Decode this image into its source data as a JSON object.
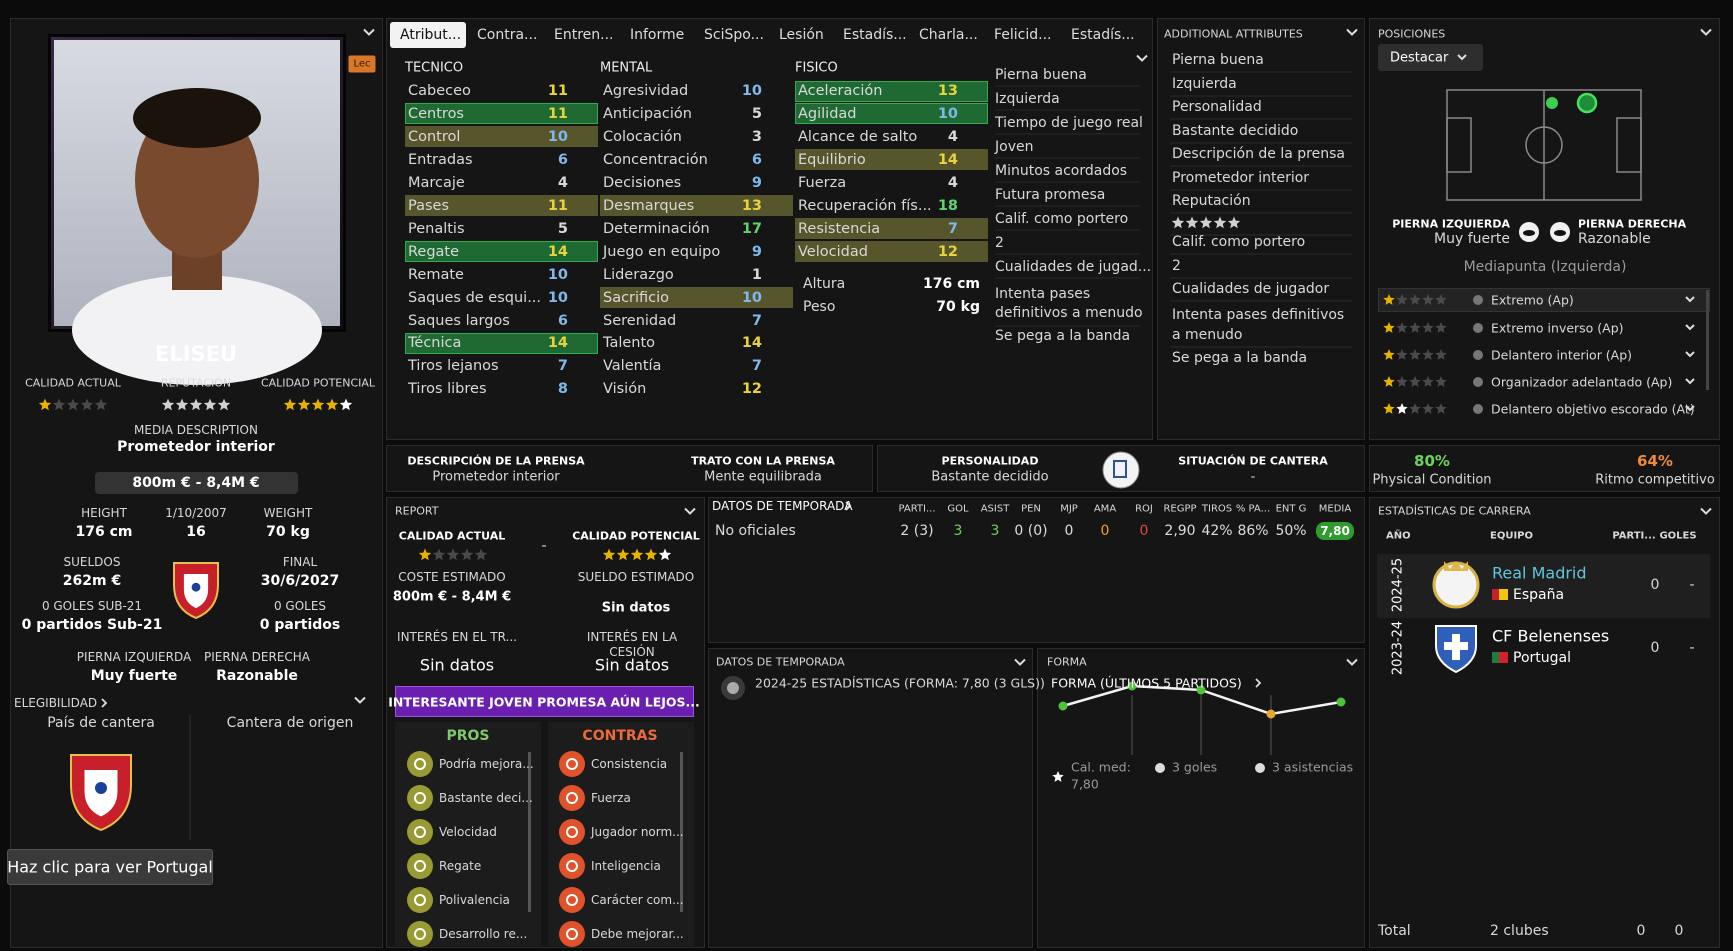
{
  "profile": {
    "badge": "Lec",
    "name": "ELISEU",
    "ratings": [
      {
        "label": "CALIDAD ACTUAL",
        "stars": 1
      },
      {
        "label": "REPUTACIÓN",
        "stars": 5
      },
      {
        "label": "CALIDAD POTENCIAL",
        "stars": 4.5
      }
    ],
    "media_description": {
      "label": "MEDIA DESCRIPTION",
      "value": "Prometedor interior"
    },
    "value": "800m € - 8,4M €",
    "facts": [
      {
        "label": "HEIGHT",
        "value": "176 cm"
      },
      {
        "label": "1/10/2007",
        "value": "16"
      },
      {
        "label": "WEIGHT",
        "value": "70 kg"
      },
      {
        "label": "SUELDOS",
        "value": "262m €"
      },
      {
        "label": "FINAL",
        "value": "30/6/2027"
      },
      {
        "label": "0 GOLES SUB-21",
        "value": "0 partidos Sub-21"
      },
      {
        "label": "0 GOLES",
        "value": "0 partidos"
      },
      {
        "label": "PIERNA IZQUIERDA",
        "value": "Muy fuerte"
      },
      {
        "label": "PIERNA DERECHA",
        "value": "Razonable"
      }
    ],
    "eligibility": {
      "title": "ELEGIBILIDAD",
      "columns": [
        "País de cantera",
        "Cantera de origen"
      ]
    },
    "tooltip": "Haz clic para ver Portugal"
  },
  "tabs": [
    "Atribut...",
    "Contra...",
    "Entren...",
    "Informe",
    "SciSpo...",
    "Lesión",
    "Estadís...",
    "Charla...",
    "Felicid...",
    "Estadís..."
  ],
  "attributes": {
    "columns": [
      {
        "title": "TECNICO",
        "rows": [
          {
            "name": "Cabeceo",
            "value": 11
          },
          {
            "name": "Centros",
            "value": 11,
            "highlight": "green"
          },
          {
            "name": "Control",
            "value": 10,
            "highlight": "olive"
          },
          {
            "name": "Entradas",
            "value": 6
          },
          {
            "name": "Marcaje",
            "value": 4
          },
          {
            "name": "Pases",
            "value": 11,
            "highlight": "olive"
          },
          {
            "name": "Penaltis",
            "value": 5
          },
          {
            "name": "Regate",
            "value": 14,
            "highlight": "green"
          },
          {
            "name": "Remate",
            "value": 10
          },
          {
            "name": "Saques de esqui...",
            "value": 10
          },
          {
            "name": "Saques largos",
            "value": 6
          },
          {
            "name": "Técnica",
            "value": 14,
            "highlight": "green"
          },
          {
            "name": "Tiros lejanos",
            "value": 7
          },
          {
            "name": "Tiros libres",
            "value": 8
          }
        ]
      },
      {
        "title": "MENTAL",
        "rows": [
          {
            "name": "Agresividad",
            "value": 10
          },
          {
            "name": "Anticipación",
            "value": 5
          },
          {
            "name": "Colocación",
            "value": 3
          },
          {
            "name": "Concentración",
            "value": 6
          },
          {
            "name": "Decisiones",
            "value": 9
          },
          {
            "name": "Desmarques",
            "value": 13,
            "highlight": "olive"
          },
          {
            "name": "Determinación",
            "value": 17
          },
          {
            "name": "Juego en equipo",
            "value": 9
          },
          {
            "name": "Liderazgo",
            "value": 1
          },
          {
            "name": "Sacrificio",
            "value": 10,
            "highlight": "olive"
          },
          {
            "name": "Serenidad",
            "value": 7
          },
          {
            "name": "Talento",
            "value": 14
          },
          {
            "name": "Valentía",
            "value": 7
          },
          {
            "name": "Visión",
            "value": 12
          }
        ]
      },
      {
        "title": "FISICO",
        "rows": [
          {
            "name": "Aceleración",
            "value": 13,
            "highlight": "green"
          },
          {
            "name": "Agilidad",
            "value": 10,
            "highlight": "green"
          },
          {
            "name": "Alcance de salto",
            "value": 4
          },
          {
            "name": "Equilibrio",
            "value": 14,
            "highlight": "olive"
          },
          {
            "name": "Fuerza",
            "value": 4
          },
          {
            "name": "Recuperación fís...",
            "value": 18
          },
          {
            "name": "Resistencia",
            "value": 7,
            "highlight": "olive"
          },
          {
            "name": "Velocidad",
            "value": 12,
            "highlight": "olive"
          }
        ]
      }
    ],
    "body": [
      {
        "label": "Altura",
        "value": "176 cm"
      },
      {
        "label": "Peso",
        "value": "70 kg"
      }
    ],
    "notes": [
      "Pierna buena",
      "Izquierda",
      "Tiempo de juego real",
      "Joven",
      "Minutos acordados",
      "Futura promesa",
      "Calif. como portero",
      "2",
      "Cualidades de jugad...",
      "Intenta pases definitivos a menudo",
      "Se pega a la banda"
    ]
  },
  "additional": {
    "title": "ADDITIONAL ATTRIBUTES",
    "items": [
      "Pierna buena",
      "Izquierda",
      "Personalidad",
      "Bastante decidido",
      "Descripción de la prensa",
      "Prometedor interior",
      "Reputación",
      {
        "stars": 5
      },
      "Calif. como portero",
      "2",
      "Cualidades de jugador",
      "Intenta pases definitivos a menudo",
      "Se pega a la banda"
    ]
  },
  "positions": {
    "title": "POSICIONES",
    "button": "Destacar",
    "feet": [
      {
        "label": "PIERNA IZQUIERDA",
        "value": "Muy fuerte"
      },
      {
        "label": "PIERNA DERECHA",
        "value": "Razonable"
      }
    ],
    "position": "Mediapunta (Izquierda)",
    "roles": [
      {
        "name": "Extremo (Ap)",
        "stars": 1
      },
      {
        "name": "Extremo inverso (Ap)",
        "stars": 1
      },
      {
        "name": "Delantero interior (Ap)",
        "stars": 1
      },
      {
        "name": "Organizador adelantado (Ap)",
        "stars": 1
      },
      {
        "name": "Delantero objetivo escorado (At)",
        "stars": 1.5
      }
    ]
  },
  "press": [
    {
      "label": "DESCRIPCIÓN DE LA PRENSA",
      "value": "Prometedor interior"
    },
    {
      "label": "TRATO CON LA PRENSA",
      "value": "Mente equilibrada"
    },
    {
      "label": "PERSONALIDAD",
      "value": "Bastante decidido"
    },
    {
      "label": "SITUACIÓN DE CANTERA",
      "value": "-"
    }
  ],
  "condition": [
    {
      "value": "80%",
      "label": "Physical Condition"
    },
    {
      "value": "64%",
      "label": "Ritmo competitivo"
    }
  ],
  "report": {
    "title": "REPORT",
    "current": {
      "label": "CALIDAD ACTUAL",
      "stars": 1
    },
    "separator": "-",
    "potential": {
      "label": "CALIDAD POTENCIAL",
      "stars": 4.5
    },
    "fields": [
      {
        "label": "COSTE ESTIMADO",
        "value": "800m € - 8,4M €"
      },
      {
        "label": "SUELDO ESTIMADO",
        "value": "Sin datos"
      },
      {
        "label": "INTERÉS EN EL TR...",
        "value": "Sin datos"
      },
      {
        "label": "INTERÉS EN LA CESIÓN",
        "value": "Sin datos"
      }
    ],
    "banner": "INTERESANTE JOVEN PROMESA AÚN LEJOS...",
    "pros": {
      "title": "PROS",
      "items": [
        "Podría mejora...",
        "Bastante deci...",
        "Velocidad",
        "Regate",
        "Polivalencia",
        "Desarrollo re..."
      ]
    },
    "cons": {
      "title": "CONTRAS",
      "items": [
        "Consistencia",
        "Fuerza",
        "Jugador norm...",
        "Inteligencia",
        "Carácter com...",
        "Debe mejorar..."
      ]
    }
  },
  "season": {
    "title": "DATOS DE TEMPORADA",
    "columns": [
      "PARTI...",
      "GOL",
      "ASIST",
      "PEN",
      "MJP",
      "AMA",
      "ROJ",
      "REGPP",
      "TIROS",
      "% PA...",
      "ENT G",
      "MEDIA"
    ],
    "rows": [
      {
        "label": "No oficiales",
        "values": [
          "2 (3)",
          "3",
          "3",
          "0 (0)",
          "0",
          "0",
          "0",
          "2,90",
          "42%",
          "86%",
          "50%",
          "7,80"
        ]
      }
    ]
  },
  "season_summary": {
    "title": "DATOS DE TEMPORADA",
    "text": "2024-25 ESTADÍSTICAS (FORMA: 7,80 (3 GLS))"
  },
  "form": {
    "title": "FORMA",
    "subtitle": "FORMA (ÚLTIMOS 5 PARTIDOS)",
    "values": [
      7.6,
      8.1,
      8.0,
      7.4,
      7.7
    ],
    "average": {
      "label": "Cal. med:",
      "value": "7,80"
    },
    "goals": "3 goles",
    "assists": "3 asistencias"
  },
  "career": {
    "title": "ESTADÍSTICAS DE CARRERA",
    "columns": [
      "AÑO",
      "EQUIPO",
      "PARTI...",
      "GOLES"
    ],
    "rows": [
      {
        "season": "2024-25",
        "team": "Real Madrid",
        "nation": "España",
        "apps": 0,
        "goals": "-"
      },
      {
        "season": "2023-24",
        "team": "CF Belenenses",
        "nation": "Portugal",
        "apps": 0,
        "goals": "-"
      }
    ],
    "total": {
      "label": "Total",
      "clubs": "2 clubes",
      "apps": 0,
      "goals": 0
    }
  }
}
